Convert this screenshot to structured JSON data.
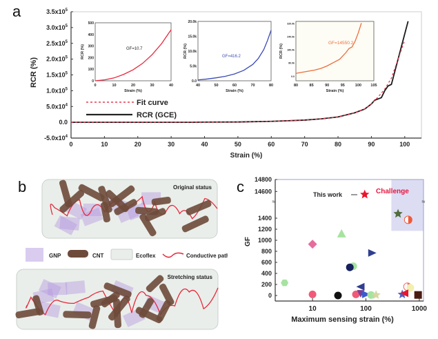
{
  "panels": {
    "a": "a",
    "b": "b",
    "c": "c"
  },
  "chart_data": [
    {
      "id": "a",
      "type": "line",
      "title": "",
      "xlabel": "Strain (%)",
      "ylabel": "RCR (%)",
      "xlim": [
        0,
        105
      ],
      "ylim": [
        -50000,
        350000
      ],
      "xticks": [
        0,
        10,
        20,
        30,
        40,
        50,
        60,
        70,
        80,
        90,
        100
      ],
      "yticks": [
        {
          "v": -50000,
          "label": "-5.0x10",
          "exp": "4"
        },
        {
          "v": 0,
          "label": "0.0",
          "exp": ""
        },
        {
          "v": 50000,
          "label": "5.0x10",
          "exp": "4"
        },
        {
          "v": 100000,
          "label": "1.0x10",
          "exp": "5"
        },
        {
          "v": 150000,
          "label": "1.5x10",
          "exp": "5"
        },
        {
          "v": 200000,
          "label": "2.0x10",
          "exp": "5"
        },
        {
          "v": 250000,
          "label": "2.5x10",
          "exp": "5"
        },
        {
          "v": 300000,
          "label": "3.0x10",
          "exp": "5"
        },
        {
          "v": 350000,
          "label": "3.5x10",
          "exp": "5"
        }
      ],
      "legend": {
        "position": "left-middle",
        "entries": [
          "Fit curve",
          "RCR (GCE)"
        ]
      },
      "series": [
        {
          "name": "RCR (GCE)",
          "color": "#1a1a1a",
          "style": "solid",
          "x": [
            0,
            10,
            20,
            30,
            36,
            40,
            50,
            55,
            60,
            65,
            70,
            75,
            80,
            85,
            88,
            90,
            91,
            93,
            94,
            95,
            96,
            97,
            98,
            99,
            100,
            101
          ],
          "y": [
            0,
            0,
            0,
            0,
            0,
            500,
            1000,
            2000,
            3000,
            5000,
            7000,
            11000,
            17000,
            30000,
            42000,
            58000,
            70000,
            78000,
            100000,
            115000,
            120000,
            160000,
            200000,
            240000,
            280000,
            320000
          ]
        },
        {
          "name": "Fit curve",
          "color": "#e8384f",
          "style": "dashed",
          "x": [
            0,
            10,
            20,
            30,
            40,
            50,
            55,
            60,
            65,
            70,
            75,
            80,
            85,
            88,
            90,
            92,
            94,
            96,
            98,
            100
          ],
          "y": [
            0,
            0,
            0,
            0,
            500,
            1000,
            2000,
            3000,
            5000,
            7000,
            11000,
            17000,
            30000,
            42000,
            58000,
            80000,
            105000,
            140000,
            200000,
            260000
          ]
        }
      ],
      "insets": [
        {
          "type": "line",
          "xlabel": "Strain (%)",
          "ylabel": "RCR (%)",
          "xlim": [
            0,
            40
          ],
          "ylim": [
            0,
            500
          ],
          "xticks": [
            0,
            10,
            20,
            30,
            40
          ],
          "yticks": [
            "0",
            "100",
            "200",
            "300",
            "400",
            "500"
          ],
          "annotation": "GF=10.7",
          "color": "#e8263a",
          "x": [
            0,
            5,
            10,
            15,
            20,
            25,
            30,
            35,
            40
          ],
          "y": [
            0,
            8,
            25,
            55,
            95,
            150,
            225,
            320,
            440
          ]
        },
        {
          "type": "line",
          "xlabel": "Strain (%)",
          "ylabel": "RCR (%)",
          "xlim": [
            40,
            80
          ],
          "ylim": [
            0,
            20000
          ],
          "xticks": [
            40,
            50,
            60,
            70,
            80
          ],
          "yticks": [
            "0.0",
            "5.0k",
            "10.0k",
            "15.0k",
            "20.0k"
          ],
          "annotation": "GF=416.2",
          "color": "#3a49b5",
          "x": [
            40,
            45,
            50,
            55,
            60,
            65,
            70,
            73,
            76,
            78,
            80
          ],
          "y": [
            300,
            600,
            1000,
            1500,
            2300,
            3500,
            5500,
            7500,
            10500,
            13500,
            17000
          ]
        },
        {
          "type": "line",
          "xlabel": "Strain (%)",
          "ylabel": "RCR (%)",
          "xlim": [
            80,
            105
          ],
          "ylim": [
            -30000,
            330000
          ],
          "xticks": [
            80,
            85,
            90,
            95,
            100,
            105
          ],
          "yticks": [
            "0.0",
            "80.0k",
            "160.0k",
            "240.0k",
            "320.0k"
          ],
          "annotation": "GF=14550.2",
          "color": "#ef6b3a",
          "x": [
            80,
            83,
            86,
            88,
            90,
            92,
            94,
            95,
            96,
            97,
            98,
            99,
            100,
            101
          ],
          "y": [
            15000,
            25000,
            35000,
            45000,
            60000,
            80000,
            100000,
            120000,
            140000,
            165000,
            175000,
            210000,
            260000,
            320000
          ]
        }
      ]
    },
    {
      "id": "c",
      "type": "scatter",
      "xlabel": "Maximum sensing strain (%)",
      "ylabel": "GF",
      "xscale": "log",
      "xlim": [
        2,
        1200
      ],
      "ylim_lower": [
        -100,
        1600
      ],
      "ylim_upper": [
        14500,
        14800
      ],
      "xticks": [
        10,
        100,
        1000
      ],
      "yticks_lower": [
        0,
        200,
        400,
        600,
        800,
        1000,
        1200,
        1400
      ],
      "yticks_upper": [
        14600,
        14800
      ],
      "annotations": [
        "This work",
        "Challenge"
      ],
      "challenge_region": {
        "x": [
          300,
          1200
        ],
        "y": [
          1170,
          14800
        ],
        "color": "#dcdcf3"
      },
      "points": [
        {
          "x": 95,
          "y": 14550,
          "marker": "star",
          "color": "#e8162e",
          "label": "This work"
        },
        {
          "x": 400,
          "y": 1480,
          "marker": "star",
          "color": "#4f6e3b"
        },
        {
          "x": 620,
          "y": 1370,
          "marker": "half-circle",
          "color": "#ef5a3a"
        },
        {
          "x": 35,
          "y": 1120,
          "marker": "triangle-up",
          "color": "#a6e3a0"
        },
        {
          "x": 10,
          "y": 930,
          "marker": "diamond",
          "color": "#e56d9e"
        },
        {
          "x": 130,
          "y": 770,
          "marker": "triangle-right",
          "color": "#2f3f8f"
        },
        {
          "x": 58,
          "y": 530,
          "marker": "circle",
          "color": "#a6e3a0"
        },
        {
          "x": 50,
          "y": 510,
          "marker": "circle",
          "color": "#16205e"
        },
        {
          "x": 3,
          "y": 230,
          "marker": "hexagon",
          "color": "#a6e3a0"
        },
        {
          "x": 80,
          "y": 160,
          "marker": "triangle-left",
          "color": "#2f3f8f"
        },
        {
          "x": 600,
          "y": 160,
          "marker": "half-circle",
          "color": "#f06b6b"
        },
        {
          "x": 680,
          "y": 140,
          "marker": "circle",
          "color": "#f2f0b0"
        },
        {
          "x": 10,
          "y": 20,
          "marker": "circle",
          "color": "#f05a78"
        },
        {
          "x": 30,
          "y": 0,
          "marker": "circle",
          "color": "#111111"
        },
        {
          "x": 65,
          "y": 20,
          "marker": "circle",
          "color": "#f05a78"
        },
        {
          "x": 80,
          "y": 30,
          "marker": "triangle-down",
          "color": "#7a3e8f"
        },
        {
          "x": 100,
          "y": 20,
          "marker": "triangle-right",
          "color": "#3a5bd0"
        },
        {
          "x": 125,
          "y": 10,
          "marker": "circle",
          "color": "#a6e3a0"
        },
        {
          "x": 155,
          "y": 10,
          "marker": "star",
          "color": "#d6d6a0"
        },
        {
          "x": 480,
          "y": 20,
          "marker": "star",
          "color": "#5060c0"
        },
        {
          "x": 530,
          "y": 40,
          "marker": "triangle-left",
          "color": "#e8162e"
        },
        {
          "x": 950,
          "y": 10,
          "marker": "square",
          "color": "#4a1c10"
        }
      ]
    }
  ],
  "diagram_b": {
    "top_label": "Original status",
    "bottom_label": "Stretching status",
    "legend": [
      {
        "name": "GNP",
        "icon": "gnp-hexagon-sheet-icon"
      },
      {
        "name": "CNT",
        "icon": "cnt-cylinder-icon"
      },
      {
        "name": "Ecoflex",
        "icon": "ecoflex-box-icon"
      },
      {
        "name": "Conductive path",
        "icon": "conductive-path-icon"
      }
    ],
    "colors": {
      "cnt": "#6e4a3a",
      "gnp": "#b59ae0",
      "path": "#e8263a",
      "matrix": "#e9eeea"
    }
  }
}
